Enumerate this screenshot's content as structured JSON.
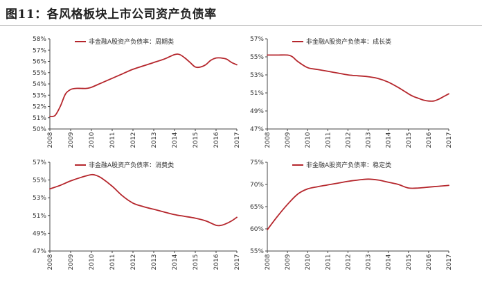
{
  "figure": {
    "title": "图11：各风格板块上市公司资产负债率"
  },
  "colors": {
    "series": "#b5262c"
  },
  "chart_data": [
    {
      "type": "line",
      "legend_position": "top-right",
      "grid": false,
      "series": [
        {
          "name": "非金融A股资产负债率：周期类",
          "x": [
            2008,
            2008.25,
            2008.5,
            2008.75,
            2009,
            2009.25,
            2009.5,
            2009.75,
            2010,
            2010.5,
            2011,
            2011.5,
            2012,
            2012.5,
            2013,
            2013.5,
            2014,
            2014.25,
            2014.5,
            2014.75,
            2015,
            2015.25,
            2015.5,
            2015.75,
            2016,
            2016.25,
            2016.5,
            2016.75,
            2017
          ],
          "values": [
            51.1,
            51.2,
            52.0,
            53.1,
            53.5,
            53.6,
            53.6,
            53.6,
            53.7,
            54.1,
            54.5,
            54.9,
            55.3,
            55.6,
            55.9,
            56.2,
            56.6,
            56.6,
            56.3,
            55.9,
            55.5,
            55.5,
            55.7,
            56.1,
            56.3,
            56.3,
            56.2,
            55.9,
            55.7
          ]
        }
      ],
      "y_ticks": [
        "50%",
        "51%",
        "52%",
        "53%",
        "54%",
        "55%",
        "56%",
        "57%",
        "58%"
      ],
      "x_ticks": [
        "2008",
        "2009",
        "2010",
        "2011",
        "2012",
        "2013",
        "2014",
        "2015",
        "2016",
        "2017"
      ],
      "ylim": [
        50,
        58
      ],
      "xlim": [
        2008,
        2017
      ]
    },
    {
      "type": "line",
      "legend_position": "top-right",
      "grid": false,
      "series": [
        {
          "name": "非金融A股资产负债率：成长类",
          "x": [
            2008,
            2008.5,
            2009,
            2009.25,
            2009.5,
            2010,
            2010.5,
            2011,
            2011.5,
            2012,
            2012.5,
            2013,
            2013.5,
            2014,
            2014.5,
            2015,
            2015.25,
            2015.5,
            2015.75,
            2016,
            2016.25,
            2016.5,
            2016.75,
            2017
          ],
          "values": [
            55.2,
            55.2,
            55.2,
            55.0,
            54.5,
            53.8,
            53.6,
            53.4,
            53.2,
            53.0,
            52.9,
            52.8,
            52.6,
            52.2,
            51.6,
            50.9,
            50.6,
            50.4,
            50.2,
            50.1,
            50.1,
            50.3,
            50.6,
            50.9
          ]
        }
      ],
      "y_ticks": [
        "47%",
        "49%",
        "51%",
        "53%",
        "55%",
        "57%"
      ],
      "x_ticks": [
        "2008",
        "2009",
        "2010",
        "2011",
        "2012",
        "2013",
        "2014",
        "2015",
        "2016",
        "2017"
      ],
      "ylim": [
        47,
        57
      ],
      "xlim": [
        2008,
        2017
      ]
    },
    {
      "type": "line",
      "legend_position": "top-right",
      "grid": false,
      "series": [
        {
          "name": "非金融A股资产负债率：消费类",
          "x": [
            2008,
            2008.5,
            2009,
            2009.5,
            2010,
            2010.25,
            2010.5,
            2011,
            2011.5,
            2012,
            2012.5,
            2013,
            2013.5,
            2014,
            2014.5,
            2015,
            2015.5,
            2016,
            2016.25,
            2016.5,
            2016.75,
            2017
          ],
          "values": [
            54.0,
            54.4,
            54.9,
            55.3,
            55.6,
            55.5,
            55.2,
            54.3,
            53.2,
            52.4,
            52.0,
            51.7,
            51.4,
            51.1,
            50.9,
            50.7,
            50.4,
            49.9,
            49.9,
            50.1,
            50.4,
            50.8
          ]
        }
      ],
      "y_ticks": [
        "47%",
        "49%",
        "51%",
        "53%",
        "55%",
        "57%"
      ],
      "x_ticks": [
        "2008",
        "2009",
        "2010",
        "2011",
        "2012",
        "2013",
        "2014",
        "2015",
        "2016",
        "2017"
      ],
      "ylim": [
        47,
        57
      ],
      "xlim": [
        2008,
        2017
      ]
    },
    {
      "type": "line",
      "legend_position": "top-right",
      "grid": false,
      "series": [
        {
          "name": "非金融A股资产负债率：稳定类",
          "x": [
            2008,
            2008.5,
            2009,
            2009.5,
            2010,
            2010.5,
            2011,
            2011.5,
            2012,
            2012.5,
            2013,
            2013.5,
            2014,
            2014.5,
            2015,
            2015.5,
            2016,
            2016.5,
            2017
          ],
          "values": [
            59.8,
            62.8,
            65.5,
            67.8,
            69.0,
            69.5,
            69.9,
            70.3,
            70.7,
            71.0,
            71.2,
            71.0,
            70.5,
            70.0,
            69.2,
            69.2,
            69.4,
            69.6,
            69.8
          ]
        }
      ],
      "y_ticks": [
        "55%",
        "60%",
        "65%",
        "70%",
        "75%"
      ],
      "x_ticks": [
        "2008",
        "2009",
        "2010",
        "2011",
        "2012",
        "2013",
        "2014",
        "2015",
        "2016",
        "2017"
      ],
      "ylim": [
        55,
        75
      ],
      "xlim": [
        2008,
        2017
      ]
    }
  ]
}
